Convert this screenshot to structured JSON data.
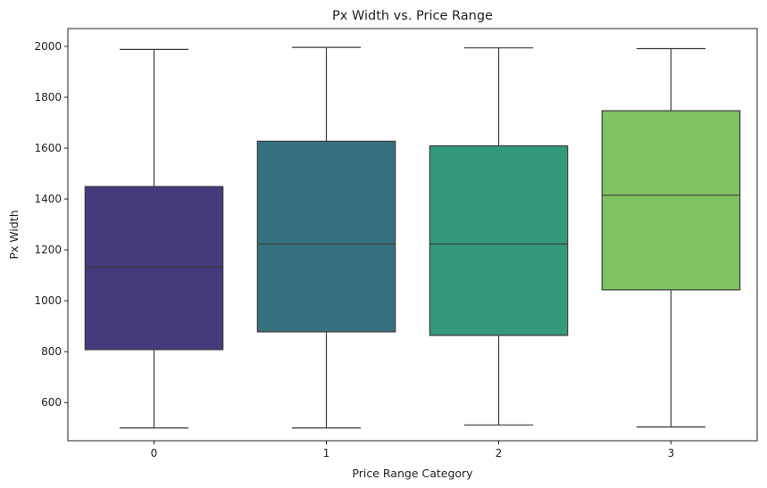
{
  "chart_data": {
    "type": "boxplot",
    "title": "Px Width vs. Price Range",
    "xlabel": "Price Range Category",
    "ylabel": "Px Width",
    "categories": [
      "0",
      "1",
      "2",
      "3"
    ],
    "ylim": [
      450,
      2070
    ],
    "yticks": [
      600,
      800,
      1000,
      1200,
      1400,
      1600,
      1800,
      2000
    ],
    "grid": false,
    "boxes": [
      {
        "category": "0",
        "min": 500,
        "q1": 808,
        "median": 1133,
        "q3": 1449,
        "max": 1988,
        "color": "#453a7c"
      },
      {
        "category": "1",
        "min": 500,
        "q1": 878,
        "median": 1223,
        "q3": 1627,
        "max": 1996,
        "color": "#36717f"
      },
      {
        "category": "2",
        "min": 512,
        "q1": 864,
        "median": 1223,
        "q3": 1609,
        "max": 1994,
        "color": "#34997b"
      },
      {
        "category": "3",
        "min": 504,
        "q1": 1043,
        "median": 1415,
        "q3": 1747,
        "max": 1991,
        "color": "#7ec261"
      }
    ]
  }
}
